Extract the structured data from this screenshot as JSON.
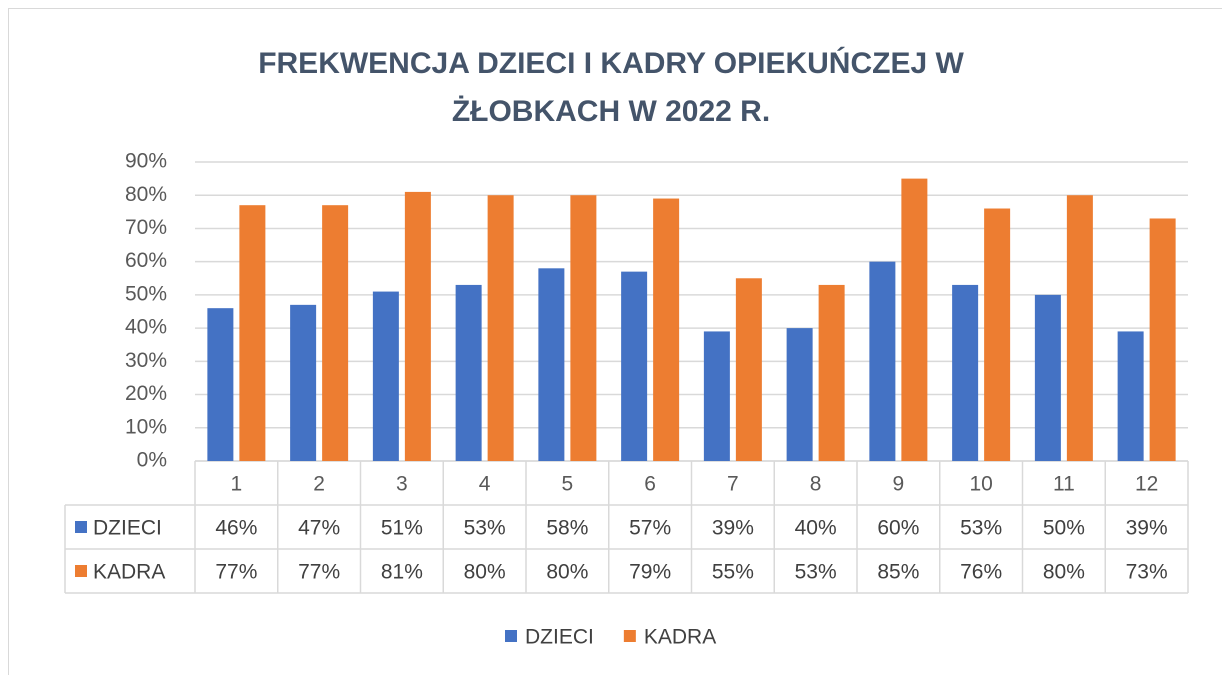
{
  "chart_data": {
    "type": "bar",
    "title": "FREKWENCJA DZIECI I KADRY OPIEKUŃCZEJ W ŻŁOBKACH W 2022 R.",
    "categories": [
      "1",
      "2",
      "3",
      "4",
      "5",
      "6",
      "7",
      "8",
      "9",
      "10",
      "11",
      "12"
    ],
    "series": [
      {
        "name": "DZIECI",
        "color": "#4472c4",
        "values": [
          46,
          47,
          51,
          53,
          58,
          57,
          39,
          40,
          60,
          53,
          50,
          39
        ],
        "value_labels": [
          "46%",
          "47%",
          "51%",
          "53%",
          "58%",
          "57%",
          "39%",
          "40%",
          "60%",
          "53%",
          "50%",
          "39%"
        ]
      },
      {
        "name": "KADRA",
        "color": "#ed7d31",
        "values": [
          77,
          77,
          81,
          80,
          80,
          79,
          55,
          53,
          85,
          76,
          80,
          73
        ],
        "value_labels": [
          "77%",
          "77%",
          "81%",
          "80%",
          "80%",
          "79%",
          "55%",
          "53%",
          "85%",
          "76%",
          "80%",
          "73%"
        ]
      }
    ],
    "ylim": [
      0,
      90
    ],
    "yticks": [
      {
        "value": 0,
        "label": "0%"
      },
      {
        "value": 10,
        "label": "10%"
      },
      {
        "value": 20,
        "label": "20%"
      },
      {
        "value": 30,
        "label": "30%"
      },
      {
        "value": 40,
        "label": "40%"
      },
      {
        "value": 50,
        "label": "50%"
      },
      {
        "value": 60,
        "label": "60%"
      },
      {
        "value": 70,
        "label": "70%"
      },
      {
        "value": 80,
        "label": "80%"
      },
      {
        "value": 90,
        "label": "90%"
      }
    ],
    "grid": true,
    "legend": "bottom"
  }
}
